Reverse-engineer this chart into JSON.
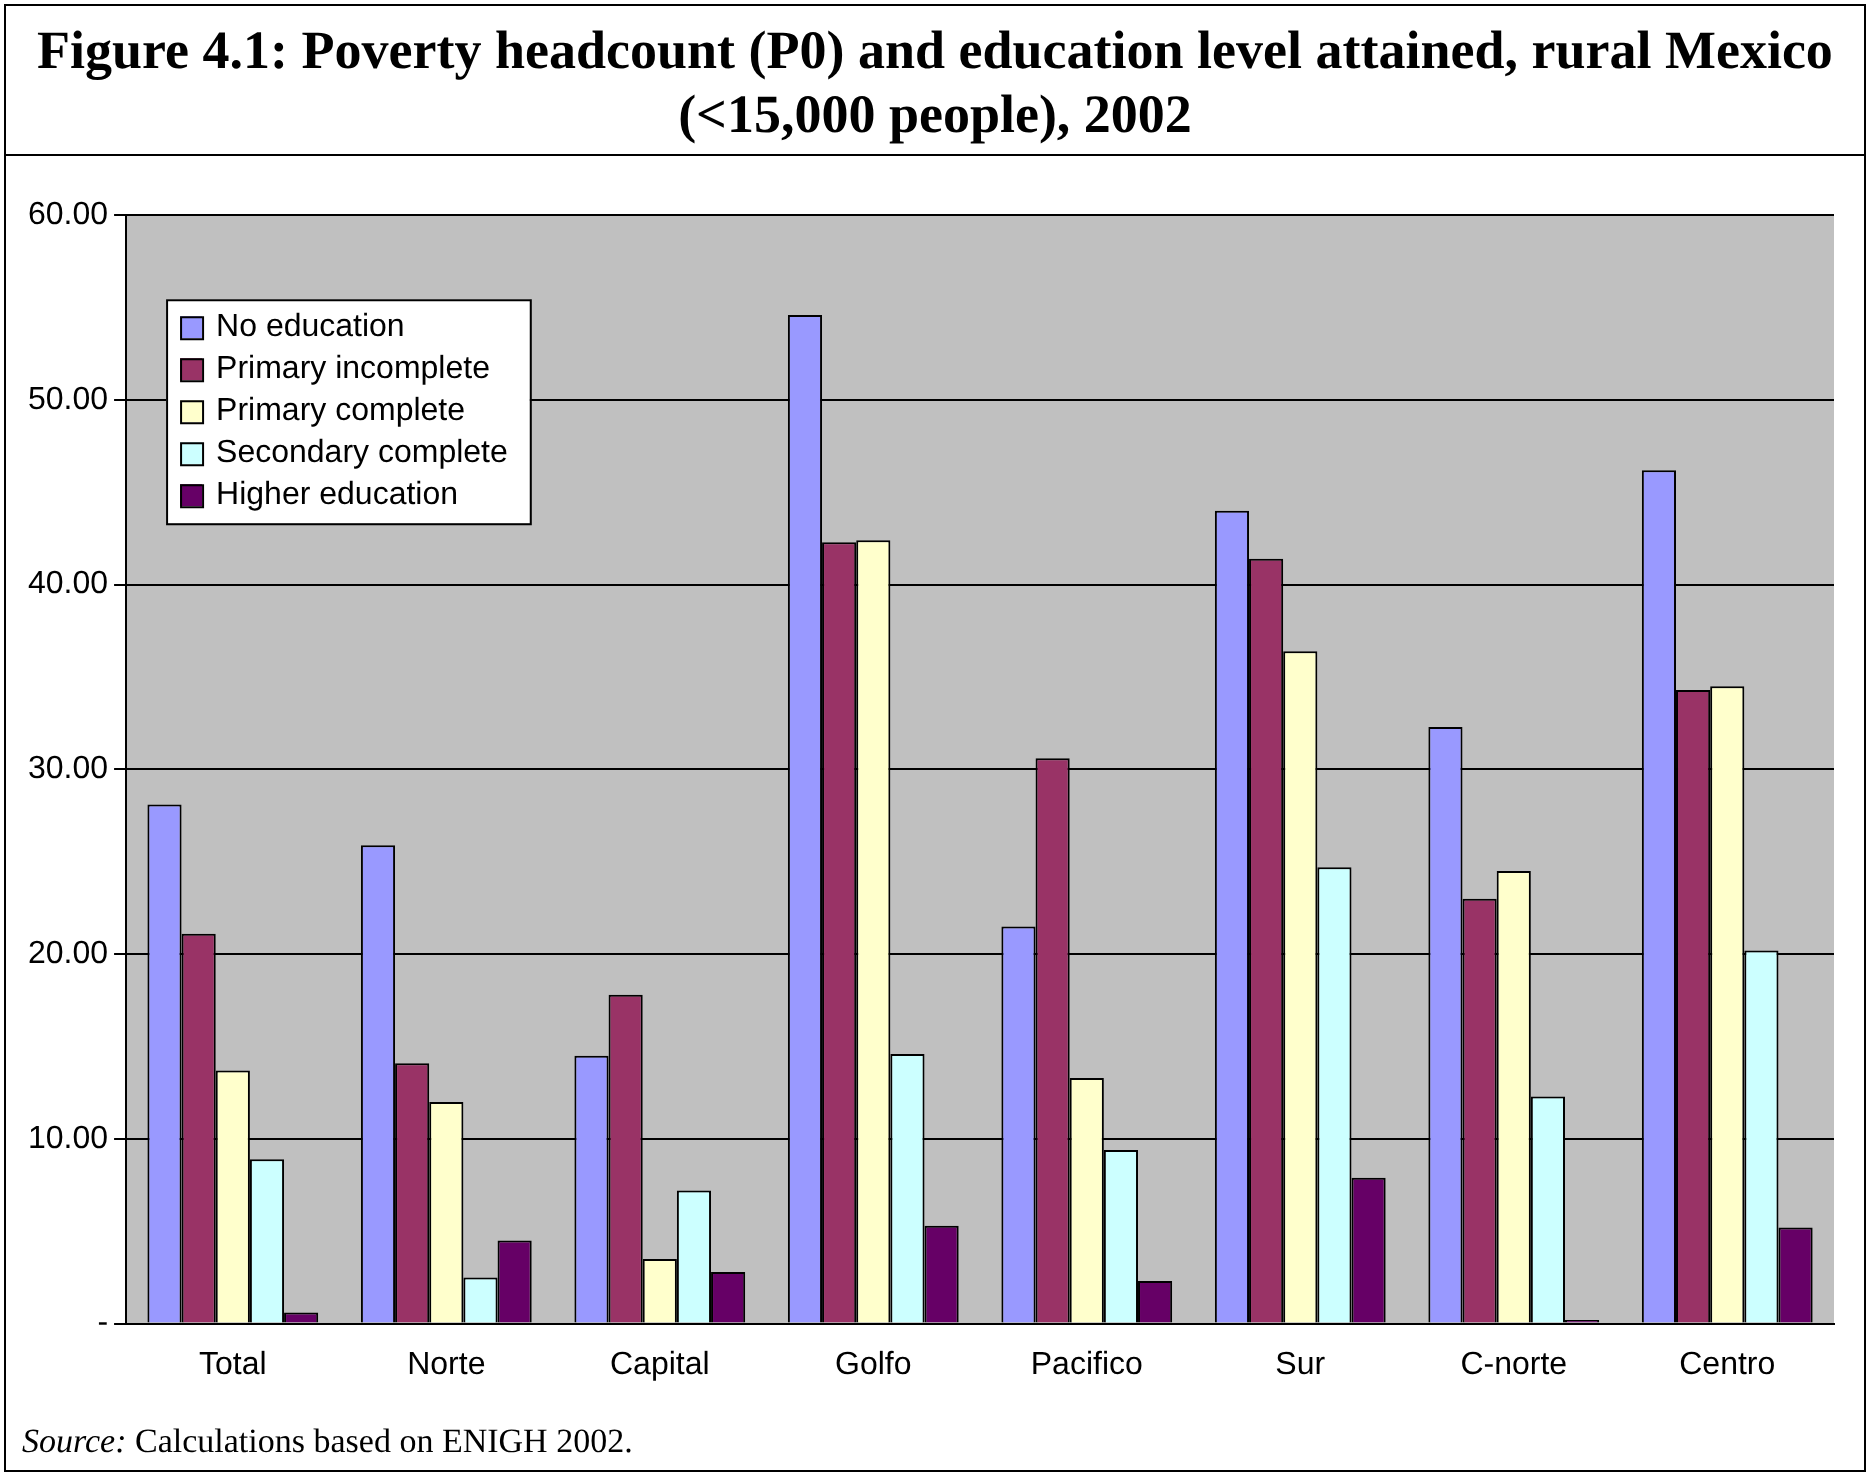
{
  "chart_data": {
    "type": "bar",
    "title": "Figure 4.1: Poverty headcount (P0) and education level attained, rural Mexico (<15,000 people), 2002",
    "categories": [
      "Total",
      "Norte",
      "Capital",
      "Golfo",
      "Pacifico",
      "Sur",
      "C-norte",
      "Centro"
    ],
    "series": [
      {
        "name": "No education",
        "color": "#9999ff",
        "values": [
          28.1,
          25.9,
          14.5,
          54.6,
          21.5,
          44.0,
          32.3,
          46.2
        ]
      },
      {
        "name": "Primary incomplete",
        "color": "#993366",
        "values": [
          21.1,
          14.1,
          17.8,
          42.3,
          30.6,
          41.4,
          23.0,
          34.3
        ]
      },
      {
        "name": "Primary complete",
        "color": "#ffffcc",
        "values": [
          13.7,
          12.0,
          3.5,
          42.4,
          13.3,
          36.4,
          24.5,
          34.5
        ]
      },
      {
        "name": "Secondary complete",
        "color": "#ccffff",
        "values": [
          8.9,
          2.5,
          7.2,
          14.6,
          9.4,
          24.7,
          12.3,
          20.2
        ]
      },
      {
        "name": "Higher education",
        "color": "#660066",
        "values": [
          0.6,
          4.5,
          2.8,
          5.3,
          2.3,
          7.9,
          0.2,
          5.2
        ]
      }
    ],
    "ylim": [
      0,
      60
    ],
    "yticks": [
      {
        "value": 0,
        "label": "-"
      },
      {
        "value": 10,
        "label": "10.00"
      },
      {
        "value": 20,
        "label": "20.00"
      },
      {
        "value": 30,
        "label": "30.00"
      },
      {
        "value": 40,
        "label": "40.00"
      },
      {
        "value": 50,
        "label": "50.00"
      },
      {
        "value": 60,
        "label": "60.00"
      }
    ],
    "grid": "y",
    "legend": "top left",
    "annotations": [
      "Source: Calculations based on ENIGH 2002."
    ]
  }
}
